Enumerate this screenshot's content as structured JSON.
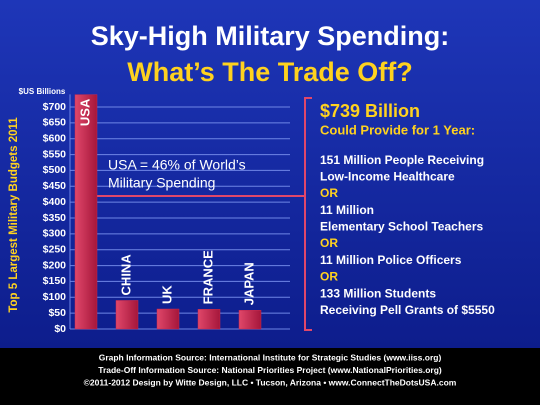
{
  "chart_data": {
    "type": "bar",
    "title": "Sky-High Military Spending:",
    "subtitle": "What’s The Trade Off?",
    "unit_label": "$US Billions",
    "ylabel": "Top 5 Largest Military Budgets 2011",
    "categories": [
      "USA",
      "CHINA",
      "UK",
      "FRANCE",
      "JAPAN"
    ],
    "values": [
      739,
      90,
      63,
      62,
      59
    ],
    "color": "#c92a4e",
    "ylim": [
      0,
      740
    ],
    "yticks": [
      {
        "value": 0,
        "label": "$0"
      },
      {
        "value": 50,
        "label": "$50"
      },
      {
        "value": 100,
        "label": "$100"
      },
      {
        "value": 150,
        "label": "$150"
      },
      {
        "value": 200,
        "label": "$200"
      },
      {
        "value": 250,
        "label": "$250"
      },
      {
        "value": 300,
        "label": "$300"
      },
      {
        "value": 350,
        "label": "$350"
      },
      {
        "value": 400,
        "label": "$400"
      },
      {
        "value": 450,
        "label": "$450"
      },
      {
        "value": 500,
        "label": "$500"
      },
      {
        "value": 550,
        "label": "$550"
      },
      {
        "value": 600,
        "label": "$600"
      },
      {
        "value": 650,
        "label": "$650"
      },
      {
        "value": 700,
        "label": "$700"
      }
    ],
    "grid": true,
    "annotation": [
      "USA = 46% of World’s",
      "Military Spending"
    ]
  },
  "panel": {
    "heading": "$739 Billion",
    "subheading": "Could Provide for 1 Year:",
    "items": [
      [
        "151 Million People Receiving",
        "Low-Income Healthcare"
      ],
      [
        "11 Million",
        "Elementary School Teachers"
      ],
      [
        "11 Million Police Officers"
      ],
      [
        "133 Million Students",
        "Receiving Pell Grants of $5550"
      ]
    ],
    "separators": [
      "OR",
      "OR",
      "OR"
    ]
  },
  "footer": [
    "Graph Information Source: International Institute for Strategic Studies (www.iiss.org)",
    "Trade-Off Information Source: National Priorities Project (www.NationalPriorities.org)",
    "©2011-2012 Design by Witte Design, LLC • Tucson, Arizona • www.ConnectTheDotsUSA.com"
  ]
}
